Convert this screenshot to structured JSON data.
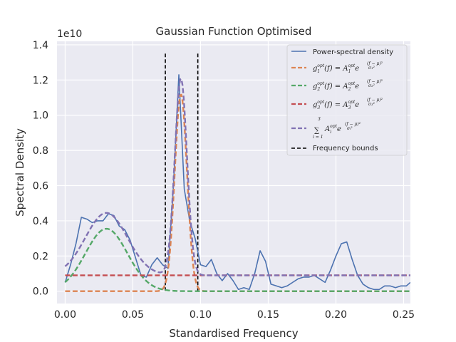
{
  "chart_data": {
    "type": "line",
    "title": "Gaussian Function Optimised",
    "xlabel": "Standardised Frequency",
    "ylabel": "Spectral Density",
    "y_offset_label": "1e10",
    "xlim": [
      -0.006,
      0.255
    ],
    "ylim": [
      -0.07,
      1.42
    ],
    "x_ticks": [
      0.0,
      0.05,
      0.1,
      0.15,
      0.2,
      0.25
    ],
    "x_tick_labels": [
      "0.00",
      "0.05",
      "0.10",
      "0.15",
      "0.20",
      "0.25"
    ],
    "y_ticks": [
      0.0,
      0.2,
      0.4,
      0.6,
      0.8,
      1.0,
      1.2,
      1.4
    ],
    "y_tick_labels": [
      "0.0",
      "0.2",
      "0.4",
      "0.6",
      "0.8",
      "1.0",
      "1.2",
      "1.4"
    ],
    "grid": true,
    "legend_position": "upper right",
    "colors": {
      "psd": "#4c72b0",
      "g1": "#dd8452",
      "g2": "#55a868",
      "g3": "#c44e52",
      "sum": "#8172b3",
      "bounds": "#000000",
      "plot_bg": "#eaeaf2",
      "grid": "#ffffff"
    },
    "legend": {
      "psd": "Power-spectral density",
      "bounds": "Frequency bounds",
      "g1": {
        "lhs": "g",
        "sup": "opt",
        "sub": "1",
        "mid": "(f) = A",
        "sub2": "1",
        "sup2": "opt",
        "exp": "e",
        "frac_num": "(f − μ)²",
        "frac_den": "σ₁²"
      },
      "g2": {
        "lhs": "g",
        "sup": "opt",
        "sub": "2",
        "mid": "(f) = A",
        "sub2": "2",
        "sup2": "opt",
        "exp": "e",
        "frac_num": "(f − μ)²",
        "frac_den": "σ₂²"
      },
      "g3": {
        "lhs": "g",
        "sup": "opt",
        "sub": "3",
        "mid": "(f) = A",
        "sub2": "3",
        "sup2": "opt",
        "exp": "e",
        "frac_num": "(f − μ)²",
        "frac_den": "σ₃²"
      },
      "sum": {
        "sum_top": "3",
        "sum_sign": "∑",
        "sum_bottom": "i = 1",
        "term": "A",
        "sub": "i",
        "sup": "opt",
        "exp": "e",
        "frac_num": "(f − μ)²",
        "frac_den": "σᵢ²"
      }
    },
    "series": [
      {
        "name": "Power-spectral density",
        "key": "psd",
        "x": [
          0.0,
          0.004,
          0.008,
          0.012,
          0.016,
          0.02,
          0.024,
          0.028,
          0.032,
          0.036,
          0.04,
          0.044,
          0.048,
          0.052,
          0.056,
          0.06,
          0.064,
          0.068,
          0.072,
          0.076,
          0.08,
          0.084,
          0.088,
          0.092,
          0.096,
          0.1,
          0.104,
          0.108,
          0.112,
          0.116,
          0.12,
          0.124,
          0.128,
          0.132,
          0.136,
          0.14,
          0.144,
          0.148,
          0.152,
          0.156,
          0.16,
          0.164,
          0.168,
          0.172,
          0.176,
          0.18,
          0.184,
          0.188,
          0.192,
          0.196,
          0.2,
          0.204,
          0.208,
          0.212,
          0.216,
          0.22,
          0.224,
          0.228,
          0.232,
          0.236,
          0.24,
          0.244,
          0.248,
          0.252,
          0.255
        ],
        "y": [
          0.05,
          0.15,
          0.27,
          0.42,
          0.41,
          0.39,
          0.4,
          0.4,
          0.44,
          0.43,
          0.37,
          0.35,
          0.29,
          0.19,
          0.09,
          0.08,
          0.15,
          0.19,
          0.15,
          0.13,
          0.6,
          1.23,
          0.58,
          0.4,
          0.3,
          0.15,
          0.14,
          0.18,
          0.1,
          0.06,
          0.1,
          0.06,
          0.01,
          0.02,
          0.01,
          0.1,
          0.23,
          0.17,
          0.04,
          0.03,
          0.02,
          0.03,
          0.05,
          0.07,
          0.08,
          0.08,
          0.09,
          0.07,
          0.05,
          0.12,
          0.2,
          0.27,
          0.28,
          0.18,
          0.09,
          0.04,
          0.02,
          0.01,
          0.01,
          0.03,
          0.03,
          0.02,
          0.03,
          0.03,
          0.05
        ]
      },
      {
        "name": "g1",
        "key": "g1",
        "style": "dashed",
        "gaussian": {
          "A": 1.12,
          "mu": 0.0855,
          "sigma": 0.0045,
          "x_from": 0.0,
          "x_to": 0.255
        }
      },
      {
        "name": "g2",
        "key": "g2",
        "style": "dashed",
        "gaussian": {
          "A": 0.355,
          "mu": 0.0305,
          "sigma": 0.0155,
          "x_from": 0.0,
          "x_to": 0.255
        }
      },
      {
        "name": "g3",
        "key": "g3",
        "style": "dashed",
        "constant": {
          "y": 0.09,
          "x_from": 0.0,
          "x_to": 0.255
        }
      },
      {
        "name": "sum",
        "key": "sum",
        "style": "dashed",
        "sum_of": [
          "g1",
          "g2",
          "g3"
        ]
      }
    ],
    "bounds": {
      "name": "Frequency bounds",
      "x": [
        0.074,
        0.098
      ],
      "y_top": 1.35,
      "y_bottom": 0.0
    }
  }
}
